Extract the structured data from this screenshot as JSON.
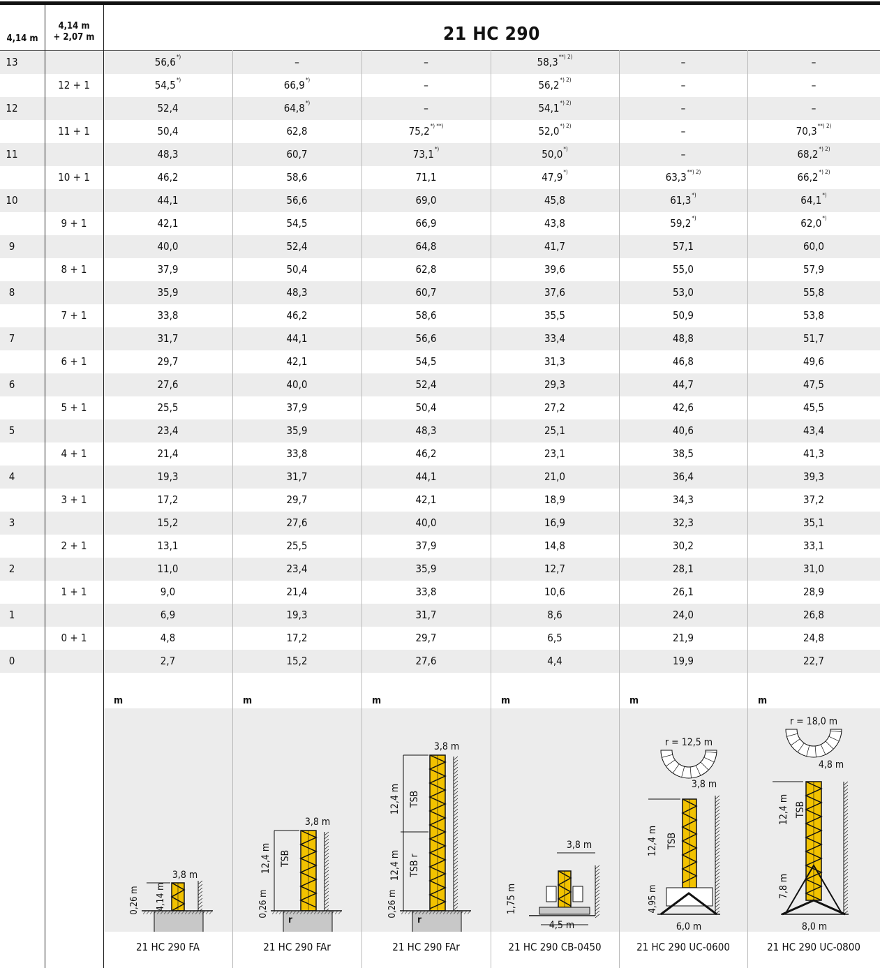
{
  "header": {
    "col_a": "4,14 m",
    "col_b_line1": "4,14 m",
    "col_b_line2": "+ 2,07 m",
    "title": "21 HC 290"
  },
  "rows": [
    {
      "a": "13",
      "b": "",
      "v": [
        {
          "t": "56,6",
          "s": "*)"
        },
        {
          "t": "–",
          "s": ""
        },
        {
          "t": "–",
          "s": ""
        },
        {
          "t": "58,3",
          "s": "**) 2)"
        },
        {
          "t": "–",
          "s": ""
        },
        {
          "t": "–",
          "s": ""
        }
      ]
    },
    {
      "a": "",
      "b": "12 + 1",
      "v": [
        {
          "t": "54,5",
          "s": "*)"
        },
        {
          "t": "66,9",
          "s": "*)"
        },
        {
          "t": "–",
          "s": ""
        },
        {
          "t": "56,2",
          "s": "*) 2)"
        },
        {
          "t": "–",
          "s": ""
        },
        {
          "t": "–",
          "s": ""
        }
      ]
    },
    {
      "a": "12",
      "b": "",
      "v": [
        {
          "t": "52,4",
          "s": ""
        },
        {
          "t": "64,8",
          "s": "*)"
        },
        {
          "t": "–",
          "s": ""
        },
        {
          "t": "54,1",
          "s": "*) 2)"
        },
        {
          "t": "–",
          "s": ""
        },
        {
          "t": "–",
          "s": ""
        }
      ]
    },
    {
      "a": "",
      "b": "11 + 1",
      "v": [
        {
          "t": "50,4",
          "s": ""
        },
        {
          "t": "62,8",
          "s": ""
        },
        {
          "t": "75,2",
          "s": "*) **)"
        },
        {
          "t": "52,0",
          "s": "*) 2)"
        },
        {
          "t": "–",
          "s": ""
        },
        {
          "t": "70,3",
          "s": "**) 2)"
        }
      ]
    },
    {
      "a": "11",
      "b": "",
      "v": [
        {
          "t": "48,3",
          "s": ""
        },
        {
          "t": "60,7",
          "s": ""
        },
        {
          "t": "73,1",
          "s": "*)"
        },
        {
          "t": "50,0",
          "s": "*)"
        },
        {
          "t": "–",
          "s": ""
        },
        {
          "t": "68,2",
          "s": "*) 2)"
        }
      ]
    },
    {
      "a": "",
      "b": "10 + 1",
      "v": [
        {
          "t": "46,2",
          "s": ""
        },
        {
          "t": "58,6",
          "s": ""
        },
        {
          "t": "71,1",
          "s": ""
        },
        {
          "t": "47,9",
          "s": "*)"
        },
        {
          "t": "63,3",
          "s": "**) 2)"
        },
        {
          "t": "66,2",
          "s": "*) 2)"
        }
      ]
    },
    {
      "a": "10",
      "b": "",
      "v": [
        {
          "t": "44,1",
          "s": ""
        },
        {
          "t": "56,6",
          "s": ""
        },
        {
          "t": "69,0",
          "s": ""
        },
        {
          "t": "45,8",
          "s": ""
        },
        {
          "t": "61,3",
          "s": "*)"
        },
        {
          "t": "64,1",
          "s": "*)"
        }
      ]
    },
    {
      "a": "",
      "b": "9 + 1",
      "v": [
        {
          "t": "42,1",
          "s": ""
        },
        {
          "t": "54,5",
          "s": ""
        },
        {
          "t": "66,9",
          "s": ""
        },
        {
          "t": "43,8",
          "s": ""
        },
        {
          "t": "59,2",
          "s": "*)"
        },
        {
          "t": "62,0",
          "s": "*)"
        }
      ]
    },
    {
      "a": "9",
      "b": "",
      "v": [
        {
          "t": "40,0",
          "s": ""
        },
        {
          "t": "52,4",
          "s": ""
        },
        {
          "t": "64,8",
          "s": ""
        },
        {
          "t": "41,7",
          "s": ""
        },
        {
          "t": "57,1",
          "s": ""
        },
        {
          "t": "60,0",
          "s": ""
        }
      ]
    },
    {
      "a": "",
      "b": "8 + 1",
      "v": [
        {
          "t": "37,9",
          "s": ""
        },
        {
          "t": "50,4",
          "s": ""
        },
        {
          "t": "62,8",
          "s": ""
        },
        {
          "t": "39,6",
          "s": ""
        },
        {
          "t": "55,0",
          "s": ""
        },
        {
          "t": "57,9",
          "s": ""
        }
      ]
    },
    {
      "a": "8",
      "b": "",
      "v": [
        {
          "t": "35,9",
          "s": ""
        },
        {
          "t": "48,3",
          "s": ""
        },
        {
          "t": "60,7",
          "s": ""
        },
        {
          "t": "37,6",
          "s": ""
        },
        {
          "t": "53,0",
          "s": ""
        },
        {
          "t": "55,8",
          "s": ""
        }
      ]
    },
    {
      "a": "",
      "b": "7 + 1",
      "v": [
        {
          "t": "33,8",
          "s": ""
        },
        {
          "t": "46,2",
          "s": ""
        },
        {
          "t": "58,6",
          "s": ""
        },
        {
          "t": "35,5",
          "s": ""
        },
        {
          "t": "50,9",
          "s": ""
        },
        {
          "t": "53,8",
          "s": ""
        }
      ]
    },
    {
      "a": "7",
      "b": "",
      "v": [
        {
          "t": "31,7",
          "s": ""
        },
        {
          "t": "44,1",
          "s": ""
        },
        {
          "t": "56,6",
          "s": ""
        },
        {
          "t": "33,4",
          "s": ""
        },
        {
          "t": "48,8",
          "s": ""
        },
        {
          "t": "51,7",
          "s": ""
        }
      ]
    },
    {
      "a": "",
      "b": "6 + 1",
      "v": [
        {
          "t": "29,7",
          "s": ""
        },
        {
          "t": "42,1",
          "s": ""
        },
        {
          "t": "54,5",
          "s": ""
        },
        {
          "t": "31,3",
          "s": ""
        },
        {
          "t": "46,8",
          "s": ""
        },
        {
          "t": "49,6",
          "s": ""
        }
      ]
    },
    {
      "a": "6",
      "b": "",
      "v": [
        {
          "t": "27,6",
          "s": ""
        },
        {
          "t": "40,0",
          "s": ""
        },
        {
          "t": "52,4",
          "s": ""
        },
        {
          "t": "29,3",
          "s": ""
        },
        {
          "t": "44,7",
          "s": ""
        },
        {
          "t": "47,5",
          "s": ""
        }
      ]
    },
    {
      "a": "",
      "b": "5 + 1",
      "v": [
        {
          "t": "25,5",
          "s": ""
        },
        {
          "t": "37,9",
          "s": ""
        },
        {
          "t": "50,4",
          "s": ""
        },
        {
          "t": "27,2",
          "s": ""
        },
        {
          "t": "42,6",
          "s": ""
        },
        {
          "t": "45,5",
          "s": ""
        }
      ]
    },
    {
      "a": "5",
      "b": "",
      "v": [
        {
          "t": "23,4",
          "s": ""
        },
        {
          "t": "35,9",
          "s": ""
        },
        {
          "t": "48,3",
          "s": ""
        },
        {
          "t": "25,1",
          "s": ""
        },
        {
          "t": "40,6",
          "s": ""
        },
        {
          "t": "43,4",
          "s": ""
        }
      ]
    },
    {
      "a": "",
      "b": "4 + 1",
      "v": [
        {
          "t": "21,4",
          "s": ""
        },
        {
          "t": "33,8",
          "s": ""
        },
        {
          "t": "46,2",
          "s": ""
        },
        {
          "t": "23,1",
          "s": ""
        },
        {
          "t": "38,5",
          "s": ""
        },
        {
          "t": "41,3",
          "s": ""
        }
      ]
    },
    {
      "a": "4",
      "b": "",
      "v": [
        {
          "t": "19,3",
          "s": ""
        },
        {
          "t": "31,7",
          "s": ""
        },
        {
          "t": "44,1",
          "s": ""
        },
        {
          "t": "21,0",
          "s": ""
        },
        {
          "t": "36,4",
          "s": ""
        },
        {
          "t": "39,3",
          "s": ""
        }
      ]
    },
    {
      "a": "",
      "b": "3 + 1",
      "v": [
        {
          "t": "17,2",
          "s": ""
        },
        {
          "t": "29,7",
          "s": ""
        },
        {
          "t": "42,1",
          "s": ""
        },
        {
          "t": "18,9",
          "s": ""
        },
        {
          "t": "34,3",
          "s": ""
        },
        {
          "t": "37,2",
          "s": ""
        }
      ]
    },
    {
      "a": "3",
      "b": "",
      "v": [
        {
          "t": "15,2",
          "s": ""
        },
        {
          "t": "27,6",
          "s": ""
        },
        {
          "t": "40,0",
          "s": ""
        },
        {
          "t": "16,9",
          "s": ""
        },
        {
          "t": "32,3",
          "s": ""
        },
        {
          "t": "35,1",
          "s": ""
        }
      ]
    },
    {
      "a": "",
      "b": "2 + 1",
      "v": [
        {
          "t": "13,1",
          "s": ""
        },
        {
          "t": "25,5",
          "s": ""
        },
        {
          "t": "37,9",
          "s": ""
        },
        {
          "t": "14,8",
          "s": ""
        },
        {
          "t": "30,2",
          "s": ""
        },
        {
          "t": "33,1",
          "s": ""
        }
      ]
    },
    {
      "a": "2",
      "b": "",
      "v": [
        {
          "t": "11,0",
          "s": ""
        },
        {
          "t": "23,4",
          "s": ""
        },
        {
          "t": "35,9",
          "s": ""
        },
        {
          "t": "12,7",
          "s": ""
        },
        {
          "t": "28,1",
          "s": ""
        },
        {
          "t": "31,0",
          "s": ""
        }
      ]
    },
    {
      "a": "",
      "b": "1 + 1",
      "v": [
        {
          "t": "9,0",
          "s": ""
        },
        {
          "t": "21,4",
          "s": ""
        },
        {
          "t": "33,8",
          "s": ""
        },
        {
          "t": "10,6",
          "s": ""
        },
        {
          "t": "26,1",
          "s": ""
        },
        {
          "t": "28,9",
          "s": ""
        }
      ]
    },
    {
      "a": "1",
      "b": "",
      "v": [
        {
          "t": "6,9",
          "s": ""
        },
        {
          "t": "19,3",
          "s": ""
        },
        {
          "t": "31,7",
          "s": ""
        },
        {
          "t": "8,6",
          "s": ""
        },
        {
          "t": "24,0",
          "s": ""
        },
        {
          "t": "26,8",
          "s": ""
        }
      ]
    },
    {
      "a": "",
      "b": "0 + 1",
      "v": [
        {
          "t": "4,8",
          "s": ""
        },
        {
          "t": "17,2",
          "s": ""
        },
        {
          "t": "29,7",
          "s": ""
        },
        {
          "t": "6,5",
          "s": ""
        },
        {
          "t": "21,9",
          "s": ""
        },
        {
          "t": "24,8",
          "s": ""
        }
      ]
    },
    {
      "a": "0",
      "b": "",
      "v": [
        {
          "t": "2,7",
          "s": ""
        },
        {
          "t": "15,2",
          "s": ""
        },
        {
          "t": "27,6",
          "s": ""
        },
        {
          "t": "4,4",
          "s": ""
        },
        {
          "t": "19,9",
          "s": ""
        },
        {
          "t": "22,7",
          "s": ""
        }
      ]
    }
  ],
  "unit_label": "m",
  "variants": [
    {
      "caption": "21 HC 290 FA",
      "labels": {
        "w": "3,8 m",
        "h1": "4,14 m",
        "b": "0,26 m"
      }
    },
    {
      "caption": "21 HC 290 FAr",
      "labels": {
        "w": "3,8 m",
        "h1": "12,4 m",
        "t1": "TSB",
        "b": "0,26 m",
        "r": "r"
      }
    },
    {
      "caption": "21 HC 290 FAr",
      "labels": {
        "w": "3,8 m",
        "h1": "12,4 m",
        "t1": "TSB",
        "h2": "12,4 m",
        "t2": "TSB r",
        "b": "0,26 m",
        "r": "r"
      }
    },
    {
      "caption": "21 HC 290 CB-0450",
      "labels": {
        "w": "3,8 m",
        "h": "1,75 m",
        "base": "4,5 m"
      }
    },
    {
      "caption": "21 HC 290 UC-0600",
      "labels": {
        "radius": "r = 12,5 m",
        "w": "3,8 m",
        "h1": "12,4 m",
        "t1": "TSB",
        "h2": "4,95 m",
        "base": "6,0 m"
      }
    },
    {
      "caption": "21 HC 290 UC-0800",
      "labels": {
        "radius": "r = 18,0 m",
        "w": "4,8 m",
        "h1": "12,4 m",
        "t1": "TSB",
        "h2": "7,8 m",
        "base": "8,0 m"
      }
    }
  ],
  "colors": {
    "mast": "#f2c200",
    "shade": "#ececec",
    "base": "#c8c8c8"
  }
}
